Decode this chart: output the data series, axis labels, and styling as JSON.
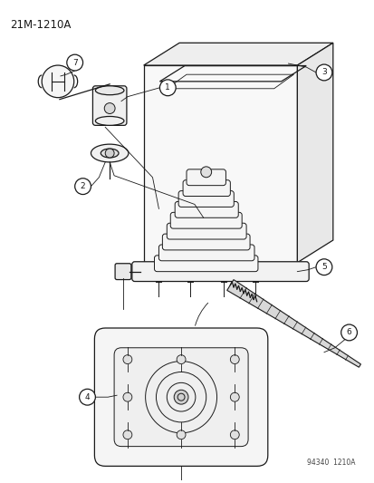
{
  "title": "21M-1210A",
  "watermark": "94340  1210A",
  "background_color": "#ffffff",
  "line_color": "#1a1a1a",
  "fig_w": 4.14,
  "fig_h": 5.33,
  "dpi": 100
}
